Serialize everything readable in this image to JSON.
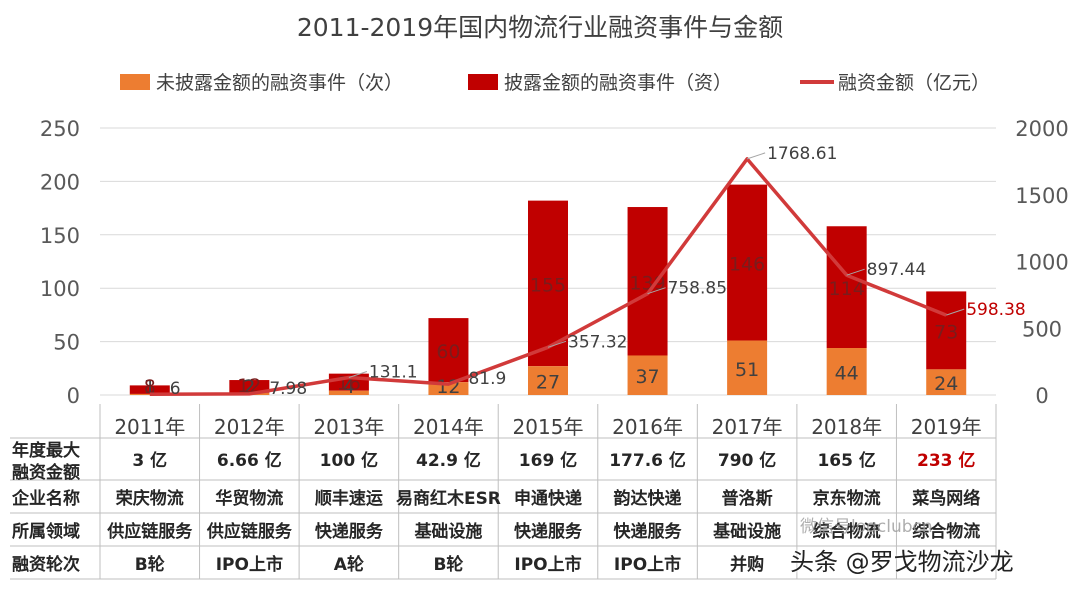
{
  "chart_data": {
    "type": "bar",
    "title": "2011-2019年国内物流行业融资事件与金额",
    "categories": [
      "2011年",
      "2012年",
      "2013年",
      "2014年",
      "2015年",
      "2016年",
      "2017年",
      "2018年",
      "2019年"
    ],
    "series": [
      {
        "name": "未披露金额的融资事件（次）",
        "type": "bar",
        "axis": "left",
        "color": "#ED7D31",
        "values": [
          1,
          2,
          4,
          12,
          27,
          37,
          51,
          44,
          24
        ]
      },
      {
        "name": "披露金额的融资事件（资）",
        "type": "bar",
        "axis": "left",
        "color": "#C00000",
        "values": [
          8,
          12,
          16,
          60,
          155,
          139,
          146,
          114,
          73
        ]
      },
      {
        "name": "融资金额（亿元）",
        "type": "line",
        "axis": "right",
        "color": "#D13A3A",
        "values": [
          6,
          7.98,
          131.1,
          81.9,
          357.32,
          758.85,
          1768.61,
          897.44,
          598.38
        ]
      }
    ],
    "y_left": {
      "min": 0,
      "max": 250,
      "ticks": [
        "0",
        "50",
        "100",
        "150",
        "200",
        "250"
      ]
    },
    "y_right": {
      "min": 0,
      "max": 2000,
      "ticks": [
        "0",
        "500",
        "1000",
        "1500",
        "2000"
      ]
    },
    "grid": true,
    "legend": "top"
  },
  "table": {
    "rows": [
      {
        "header": "年度最大融资金额",
        "header_lines": [
          "年度最大",
          "融资金额"
        ],
        "cells": [
          "3 亿",
          "6.66 亿",
          "100 亿",
          "42.9 亿",
          "169 亿",
          "177.6 亿",
          "790 亿",
          "165 亿",
          "233 亿"
        ]
      },
      {
        "header": "企业名称",
        "cells": [
          "荣庆物流",
          "华贸物流",
          "顺丰速运",
          "易商红木ESR",
          "申通快递",
          "韵达快递",
          "普洛斯",
          "京东物流",
          "菜鸟网络"
        ]
      },
      {
        "header": "所属领域",
        "cells": [
          "供应链服务",
          "供应链服务",
          "快递服务",
          "基础设施",
          "快递服务",
          "快递服务",
          "基础设施",
          "综合物流",
          "综合物流"
        ]
      },
      {
        "header": "融资轮次",
        "cells": [
          "B轮",
          "IPO上市",
          "A轮",
          "B轮",
          "IPO上市",
          "IPO上市",
          "并购",
          "",
          ""
        ]
      }
    ]
  },
  "watermark": {
    "main": "头条 @罗戈物流沙龙",
    "sub": "微信号logclubcn"
  },
  "colors": {
    "orange": "#ED7D31",
    "darkred": "#C00000",
    "line": "#D13A3A",
    "highlight": "#C00000"
  }
}
